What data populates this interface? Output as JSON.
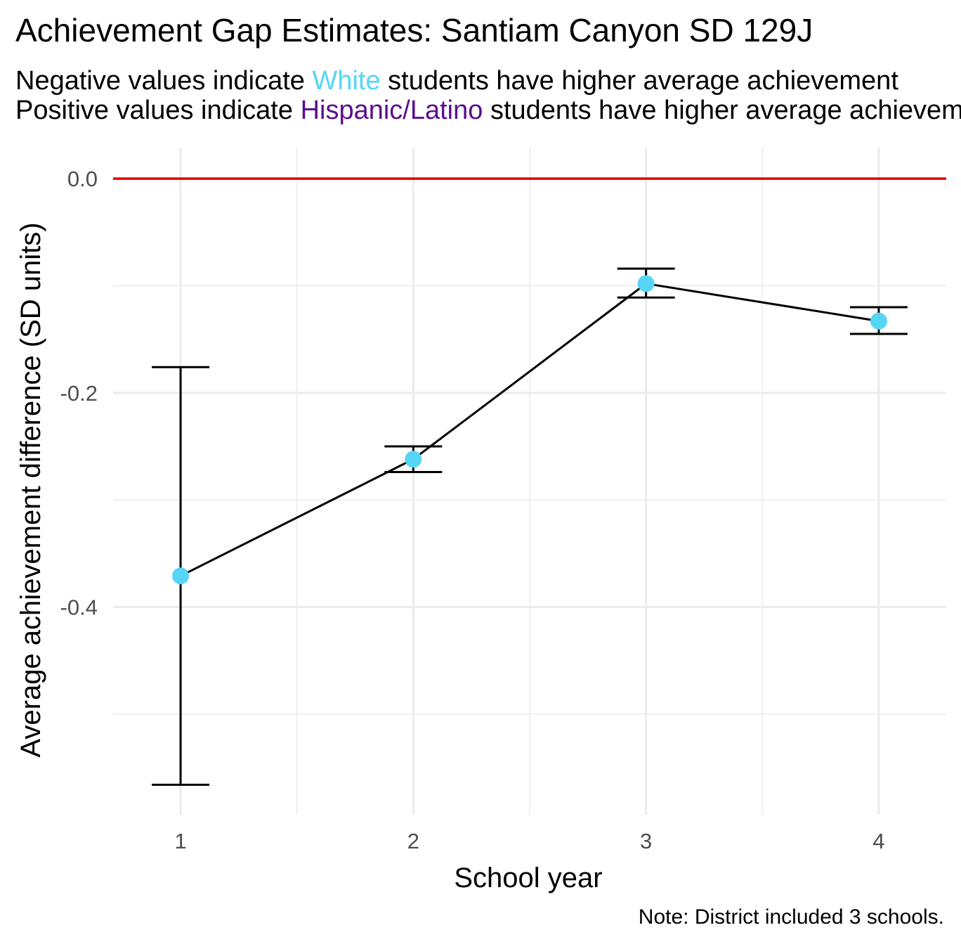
{
  "title": "Achievement Gap Estimates: Santiam Canyon SD 129J",
  "subtitle": {
    "line1": {
      "pre": "Negative values indicate ",
      "group": "White",
      "post": " students have higher average achievement"
    },
    "line2": {
      "pre": "Positive values indicate ",
      "group": "Hispanic/Latino",
      "post": " students have higher average achievement"
    }
  },
  "caption": "Note: District included 3 schools.",
  "colors": {
    "white_group": "#56D6F4",
    "hispanic_group": "#5C0D8F",
    "reference_line": "#E00000",
    "point": "#56D6F4",
    "line": "#000000",
    "grid": "#EBEBEB"
  },
  "chart_data": {
    "type": "line",
    "xlabel": "School year",
    "ylabel": "Average achievement difference (SD units)",
    "x": [
      1,
      2,
      3,
      4
    ],
    "x_ticks": [
      "1",
      "2",
      "3",
      "4"
    ],
    "xlim": [
      0.71,
      4.29
    ],
    "y_ticks": [
      0.0,
      -0.2,
      -0.4
    ],
    "y_tick_labels": [
      "0.0",
      "-0.2",
      "-0.4"
    ],
    "ylim": [
      -0.594,
      0.029
    ],
    "grid": true,
    "reference_line_y": 0.0,
    "series": [
      {
        "values": [
          -0.371,
          -0.262,
          -0.098,
          -0.133
        ],
        "error_lower": [
          -0.566,
          -0.274,
          -0.111,
          -0.145
        ],
        "error_upper": [
          -0.176,
          -0.25,
          -0.084,
          -0.12
        ]
      }
    ]
  }
}
